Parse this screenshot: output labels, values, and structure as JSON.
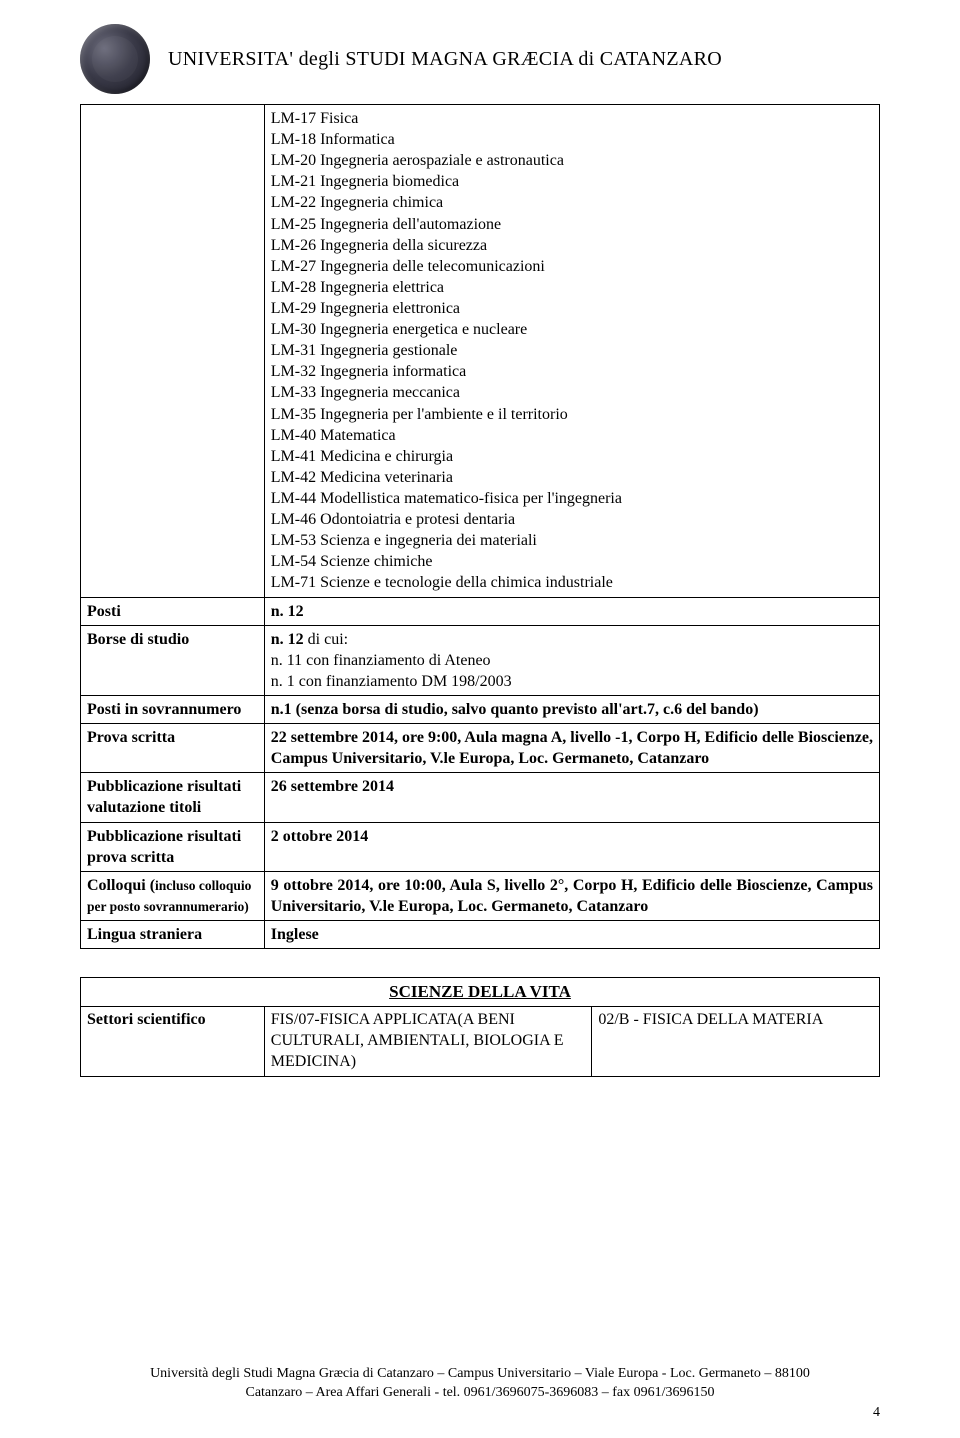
{
  "header": {
    "title": "UNIVERSITA' degli STUDI MAGNA GRÆCIA di CATANZARO"
  },
  "listBlock": [
    "LM-17 Fisica",
    "LM-18 Informatica",
    "LM-20 Ingegneria aerospaziale e astronautica",
    "LM-21 Ingegneria biomedica",
    "LM-22 Ingegneria chimica",
    "LM-25 Ingegneria dell'automazione",
    "LM-26 Ingegneria della sicurezza",
    "LM-27 Ingegneria delle telecomunicazioni",
    "LM-28 Ingegneria elettrica",
    "LM-29 Ingegneria elettronica",
    "LM-30 Ingegneria energetica e nucleare",
    "LM-31 Ingegneria gestionale",
    "LM-32 Ingegneria informatica",
    "LM-33 Ingegneria meccanica",
    "LM-35 Ingegneria per l'ambiente e il territorio",
    "LM-40 Matematica",
    "LM-41 Medicina e chirurgia",
    "LM-42 Medicina veterinaria",
    "LM-44 Modellistica matematico-fisica per l'ingegneria",
    "LM-46 Odontoiatria e protesi dentaria",
    "LM-53 Scienza e ingegneria dei materiali",
    "LM-54 Scienze chimiche",
    "LM-71 Scienze e tecnologie della chimica industriale"
  ],
  "rows": {
    "posti": {
      "key": "Posti",
      "val": "n. 12"
    },
    "borse": {
      "key": "Borse di studio",
      "line1_b": "n. 12 ",
      "line1_rest": "di cui:",
      "line2": "n. 11 con finanziamento di Ateneo",
      "line3": "n. 1 con finanziamento DM 198/2003"
    },
    "postiSov": {
      "key": "Posti in sovrannumero",
      "val": "n.1 (senza borsa di studio, salvo quanto previsto all'art.7, c.6 del bando)"
    },
    "provaScritta": {
      "key": "Prova scritta",
      "val": "22 settembre 2014, ore 9:00, Aula magna A, livello -1, Corpo H, Edificio delle Bioscienze, Campus Universitario, V.le Europa, Loc. Germaneto, Catanzaro"
    },
    "pubTitoli": {
      "key": "Pubblicazione risultati valutazione titoli",
      "val": "26 settembre 2014"
    },
    "pubProva": {
      "key": "Pubblicazione risultati prova scritta",
      "val": "2 ottobre 2014"
    },
    "colloqui": {
      "key_line1": "Colloqui (",
      "key_small": "incluso colloquio per posto sovrannumerario)",
      "val": "9 ottobre 2014, ore 10:00, Aula S, livello 2°, Corpo H,  Edificio delle Bioscienze, Campus Universitario, V.le Europa, Loc. Germaneto, Catanzaro"
    },
    "lingua": {
      "key": "Lingua straniera",
      "val": "Inglese"
    }
  },
  "bottomTable": {
    "sectionTitle": "SCIENZE DELLA VITA",
    "col1Key": "Settori scientifico",
    "col2": "FIS/07-FISICA APPLICATA(A BENI CULTURALI, AMBIENTALI, BIOLOGIA E MEDICINA)",
    "col3": "02/B - FISICA DELLA MATERIA"
  },
  "footer": {
    "line1": "Università degli Studi Magna Græcia di Catanzaro – Campus Universitario – Viale Europa - Loc. Germaneto –  88100",
    "line2": "Catanzaro – Area Affari Generali - tel.  0961/3696075-3696083 – fax 0961/3696150",
    "pageNum": "4"
  },
  "style": {
    "pageWidth": 960,
    "pageHeight": 1438,
    "bg": "#ffffff",
    "text": "#000000",
    "border": "#000000",
    "fontFamily": "Times New Roman",
    "baseFontSize": 16
  }
}
